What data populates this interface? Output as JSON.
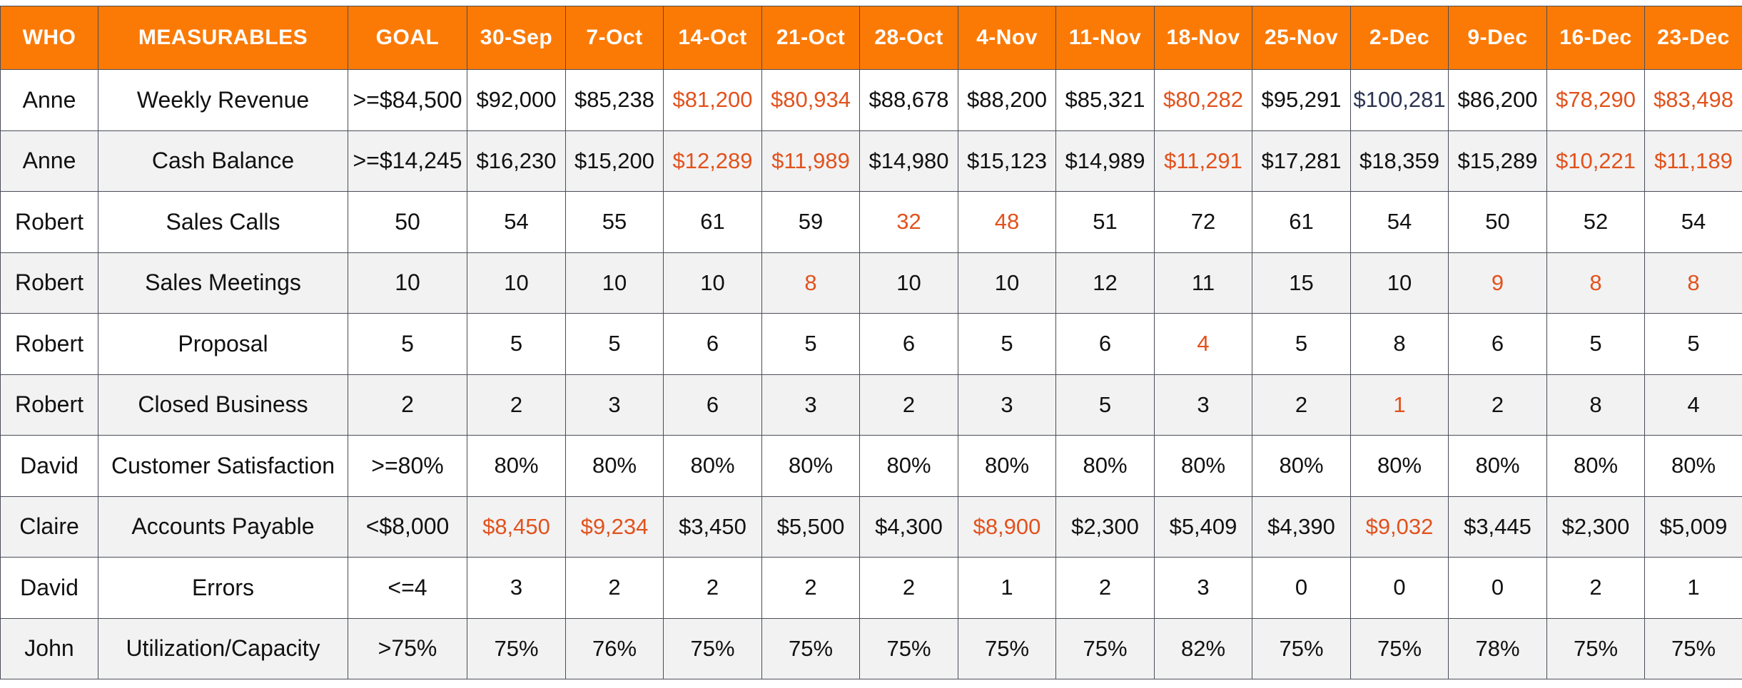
{
  "headers": {
    "who": "WHO",
    "measurables": "MEASURABLES",
    "goal": "GOAL",
    "weeks": [
      "30-Sep",
      "7-Oct",
      "14-Oct",
      "21-Oct",
      "28-Oct",
      "4-Nov",
      "11-Nov",
      "18-Nov",
      "25-Nov",
      "2-Dec",
      "9-Dec",
      "16-Dec",
      "23-Dec"
    ]
  },
  "colors": {
    "header_bg": "#fb7a06",
    "header_text": "#ffffff",
    "off_track_text": "#e2521c",
    "normal_text": "#111111",
    "alt_row_bg": "#f2f2f3",
    "navy_text": "#2c3552"
  },
  "rows": [
    {
      "who": "Anne",
      "measurable": "Weekly Revenue",
      "goal": ">=$84,500",
      "values": [
        "$92,000",
        "$85,238",
        "$81,200",
        "$80,934",
        "$88,678",
        "$88,200",
        "$85,321",
        "$80,282",
        "$95,291",
        "$100,281",
        "$86,200",
        "$78,290",
        "$83,498"
      ],
      "status": [
        "ok",
        "ok",
        "miss",
        "miss",
        "ok",
        "ok",
        "ok",
        "miss",
        "ok",
        "navy",
        "ok",
        "miss",
        "miss"
      ]
    },
    {
      "who": "Anne",
      "measurable": "Cash Balance",
      "goal": ">=$14,245",
      "values": [
        "$16,230",
        "$15,200",
        "$12,289",
        "$11,989",
        "$14,980",
        "$15,123",
        "$14,989",
        "$11,291",
        "$17,281",
        "$18,359",
        "$15,289",
        "$10,221",
        "$11,189"
      ],
      "status": [
        "ok",
        "ok",
        "miss",
        "miss",
        "ok",
        "ok",
        "ok",
        "miss",
        "ok",
        "ok",
        "ok",
        "miss",
        "miss"
      ]
    },
    {
      "who": "Robert",
      "measurable": "Sales Calls",
      "goal": "50",
      "values": [
        "54",
        "55",
        "61",
        "59",
        "32",
        "48",
        "51",
        "72",
        "61",
        "54",
        "50",
        "52",
        "54"
      ],
      "status": [
        "ok",
        "ok",
        "ok",
        "ok",
        "miss",
        "miss",
        "ok",
        "ok",
        "ok",
        "ok",
        "ok",
        "ok",
        "ok"
      ]
    },
    {
      "who": "Robert",
      "measurable": "Sales Meetings",
      "goal": "10",
      "values": [
        "10",
        "10",
        "10",
        "8",
        "10",
        "10",
        "12",
        "11",
        "15",
        "10",
        "9",
        "8",
        "8"
      ],
      "status": [
        "ok",
        "ok",
        "ok",
        "miss",
        "ok",
        "ok",
        "ok",
        "ok",
        "ok",
        "ok",
        "miss",
        "miss",
        "miss"
      ]
    },
    {
      "who": "Robert",
      "measurable": "Proposal",
      "goal": "5",
      "values": [
        "5",
        "5",
        "6",
        "5",
        "6",
        "5",
        "6",
        "4",
        "5",
        "8",
        "6",
        "5",
        "5"
      ],
      "status": [
        "ok",
        "ok",
        "ok",
        "ok",
        "ok",
        "ok",
        "ok",
        "miss",
        "ok",
        "ok",
        "ok",
        "ok",
        "ok"
      ]
    },
    {
      "who": "Robert",
      "measurable": "Closed Business",
      "goal": "2",
      "values": [
        "2",
        "3",
        "6",
        "3",
        "2",
        "3",
        "5",
        "3",
        "2",
        "1",
        "2",
        "8",
        "4"
      ],
      "status": [
        "ok",
        "ok",
        "ok",
        "ok",
        "ok",
        "ok",
        "ok",
        "ok",
        "ok",
        "miss",
        "ok",
        "ok",
        "ok"
      ]
    },
    {
      "who": "David",
      "measurable": "Customer Satisfaction",
      "goal": ">=80%",
      "values": [
        "80%",
        "80%",
        "80%",
        "80%",
        "80%",
        "80%",
        "80%",
        "80%",
        "80%",
        "80%",
        "80%",
        "80%",
        "80%"
      ],
      "status": [
        "ok",
        "ok",
        "ok",
        "ok",
        "ok",
        "ok",
        "ok",
        "ok",
        "ok",
        "ok",
        "ok",
        "ok",
        "ok"
      ]
    },
    {
      "who": "Claire",
      "measurable": "Accounts Payable",
      "goal": "<$8,000",
      "values": [
        "$8,450",
        "$9,234",
        "$3,450",
        "$5,500",
        "$4,300",
        "$8,900",
        "$2,300",
        "$5,409",
        "$4,390",
        "$9,032",
        "$3,445",
        "$2,300",
        "$5,009"
      ],
      "status": [
        "miss",
        "miss",
        "ok",
        "ok",
        "ok",
        "miss",
        "ok",
        "ok",
        "ok",
        "miss",
        "ok",
        "ok",
        "ok"
      ]
    },
    {
      "who": "David",
      "measurable": "Errors",
      "goal": "<=4",
      "values": [
        "3",
        "2",
        "2",
        "2",
        "2",
        "1",
        "2",
        "3",
        "0",
        "0",
        "0",
        "2",
        "1"
      ],
      "status": [
        "ok",
        "ok",
        "ok",
        "ok",
        "ok",
        "ok",
        "ok",
        "ok",
        "ok",
        "ok",
        "ok",
        "ok",
        "ok"
      ]
    },
    {
      "who": "John",
      "measurable": "Utilization/Capacity",
      "goal": ">75%",
      "values": [
        "75%",
        "76%",
        "75%",
        "75%",
        "75%",
        "75%",
        "75%",
        "82%",
        "75%",
        "75%",
        "78%",
        "75%",
        "75%"
      ],
      "status": [
        "ok",
        "ok",
        "ok",
        "ok",
        "ok",
        "ok",
        "ok",
        "ok",
        "ok",
        "ok",
        "ok",
        "ok",
        "ok"
      ]
    }
  ]
}
